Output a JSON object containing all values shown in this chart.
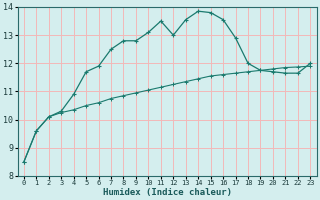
{
  "xlabel": "Humidex (Indice chaleur)",
  "bg_color": "#d4eeee",
  "grid_color": "#f2b8b8",
  "line_color": "#1a7a6e",
  "xlim": [
    -0.5,
    23.5
  ],
  "ylim": [
    8,
    14
  ],
  "xticks": [
    0,
    1,
    2,
    3,
    4,
    5,
    6,
    7,
    8,
    9,
    10,
    11,
    12,
    13,
    14,
    15,
    16,
    17,
    18,
    19,
    20,
    21,
    22,
    23
  ],
  "yticks": [
    8,
    9,
    10,
    11,
    12,
    13,
    14
  ],
  "curve1_x": [
    0,
    1,
    2,
    3,
    4,
    5,
    6,
    7,
    8,
    9,
    10,
    11,
    12,
    13,
    14,
    15,
    16,
    17,
    18,
    19,
    20,
    21,
    22,
    23
  ],
  "curve1_y": [
    8.5,
    9.6,
    10.1,
    10.3,
    10.9,
    11.7,
    11.9,
    12.5,
    12.8,
    12.8,
    13.1,
    13.5,
    13.0,
    13.55,
    13.85,
    13.8,
    13.55,
    12.9,
    12.0,
    11.75,
    11.7,
    11.65,
    11.65,
    12.0
  ],
  "curve2_x": [
    0,
    1,
    2,
    3,
    4,
    5,
    6,
    7,
    8,
    9,
    10,
    11,
    12,
    13,
    14,
    15,
    16,
    17,
    18,
    19,
    20,
    21,
    22,
    23
  ],
  "curve2_y": [
    8.5,
    9.6,
    10.1,
    10.25,
    10.35,
    10.5,
    10.6,
    10.75,
    10.85,
    10.95,
    11.05,
    11.15,
    11.25,
    11.35,
    11.45,
    11.55,
    11.6,
    11.65,
    11.7,
    11.75,
    11.8,
    11.85,
    11.87,
    11.9
  ]
}
